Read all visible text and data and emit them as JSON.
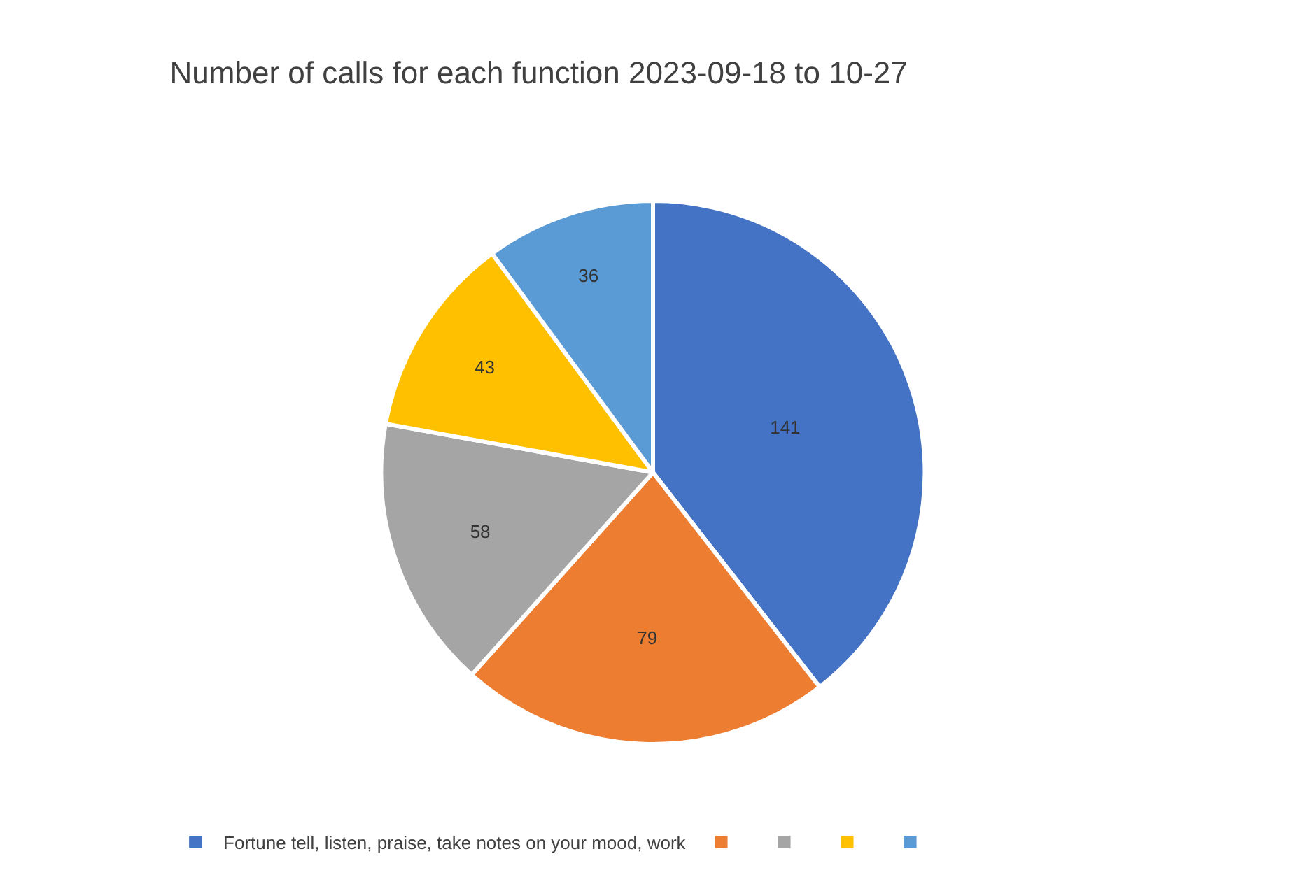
{
  "chart_data": {
    "type": "pie",
    "title": "Number of calls for each function 2023-09-18 to 10-27",
    "categories": [
      "Fortune tell, listen, praise, take notes on your mood, work",
      null,
      null,
      null,
      null
    ],
    "values": [
      141,
      79,
      58,
      43,
      36
    ],
    "colors": [
      "#4472c4",
      "#ed7d31",
      "#a5a5a5",
      "#ffc000",
      "#5b9bd5"
    ],
    "data_labels": true,
    "legend": "bottom"
  }
}
